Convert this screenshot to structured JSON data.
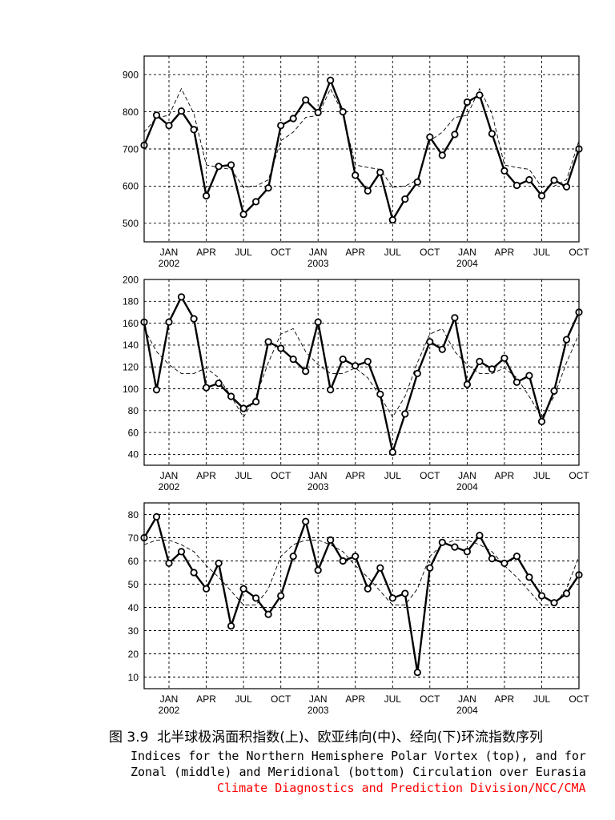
{
  "figure": {
    "caption_cn": "图 3.9  北半球极涡面积指数(上)、欧亚纬向(中)、经向(下)环流指数序列",
    "caption_en_line1": "Indices for the Northern Hemisphere Polar Vortex (top), and for",
    "caption_en_line2": "Zonal (middle) and Meridional (bottom) Circulation over Eurasia",
    "credit": "Climate Diagnostics and Prediction Division/NCC/CMA",
    "credit_color": "#ff0000"
  },
  "chart_data": [
    {
      "type": "line",
      "x": [
        "2001-11",
        "2001-12",
        "2002-01",
        "2002-02",
        "2002-03",
        "2002-04",
        "2002-05",
        "2002-06",
        "2002-07",
        "2002-08",
        "2002-09",
        "2002-10",
        "2002-11",
        "2002-12",
        "2003-01",
        "2003-02",
        "2003-03",
        "2003-04",
        "2003-05",
        "2003-06",
        "2003-07",
        "2003-08",
        "2003-09",
        "2003-10",
        "2003-11",
        "2003-12",
        "2004-01",
        "2004-02",
        "2004-03",
        "2004-04",
        "2004-05",
        "2004-06",
        "2004-07",
        "2004-08",
        "2004-09",
        "2004-10"
      ],
      "xticks": [
        {
          "x": "2002-01",
          "label": "JAN",
          "year": "2002"
        },
        {
          "x": "2002-04",
          "label": "APR"
        },
        {
          "x": "2002-07",
          "label": "JUL"
        },
        {
          "x": "2002-10",
          "label": "OCT"
        },
        {
          "x": "2003-01",
          "label": "JAN",
          "year": "2003"
        },
        {
          "x": "2003-04",
          "label": "APR"
        },
        {
          "x": "2003-07",
          "label": "JUL"
        },
        {
          "x": "2003-10",
          "label": "OCT"
        },
        {
          "x": "2004-01",
          "label": "JAN",
          "year": "2004"
        },
        {
          "x": "2004-04",
          "label": "APR"
        },
        {
          "x": "2004-07",
          "label": "JUL"
        },
        {
          "x": "2004-10",
          "label": "OCT"
        }
      ],
      "yticks": [
        500,
        600,
        700,
        800,
        900
      ],
      "ylim": [
        450,
        950
      ],
      "grid": true,
      "series": [
        {
          "line": "solid",
          "marker": "circle",
          "color": "#000000",
          "values": [
            710,
            791,
            763,
            802,
            752,
            574,
            653,
            657,
            524,
            558,
            595,
            763,
            782,
            832,
            798,
            885,
            800,
            629,
            587,
            637,
            509,
            565,
            611,
            732,
            683,
            739,
            826,
            845,
            741,
            641,
            602,
            617,
            574,
            616,
            598,
            700
          ]
        },
        {
          "line": "dashed",
          "marker": "none",
          "color": "#000000",
          "values": [
            745,
            785,
            790,
            862,
            795,
            657,
            650,
            645,
            597,
            600,
            617,
            722,
            745,
            785,
            790,
            862,
            795,
            657,
            650,
            645,
            597,
            600,
            617,
            722,
            745,
            785,
            790,
            862,
            795,
            657,
            650,
            645,
            597,
            600,
            617,
            722
          ]
        }
      ]
    },
    {
      "type": "line",
      "x": [
        "2001-11",
        "2001-12",
        "2002-01",
        "2002-02",
        "2002-03",
        "2002-04",
        "2002-05",
        "2002-06",
        "2002-07",
        "2002-08",
        "2002-09",
        "2002-10",
        "2002-11",
        "2002-12",
        "2003-01",
        "2003-02",
        "2003-03",
        "2003-04",
        "2003-05",
        "2003-06",
        "2003-07",
        "2003-08",
        "2003-09",
        "2003-10",
        "2003-11",
        "2003-12",
        "2004-01",
        "2004-02",
        "2004-03",
        "2004-04",
        "2004-05",
        "2004-06",
        "2004-07",
        "2004-08",
        "2004-09",
        "2004-10"
      ],
      "xticks": [
        {
          "x": "2002-01",
          "label": "JAN",
          "year": "2002"
        },
        {
          "x": "2002-04",
          "label": "APR"
        },
        {
          "x": "2002-07",
          "label": "JUL"
        },
        {
          "x": "2002-10",
          "label": "OCT"
        },
        {
          "x": "2003-01",
          "label": "JAN",
          "year": "2003"
        },
        {
          "x": "2003-04",
          "label": "APR"
        },
        {
          "x": "2003-07",
          "label": "JUL"
        },
        {
          "x": "2003-10",
          "label": "OCT"
        },
        {
          "x": "2004-01",
          "label": "JAN",
          "year": "2004"
        },
        {
          "x": "2004-04",
          "label": "APR"
        },
        {
          "x": "2004-07",
          "label": "JUL"
        },
        {
          "x": "2004-10",
          "label": "OCT"
        }
      ],
      "yticks": [
        40,
        60,
        80,
        100,
        120,
        140,
        160,
        180,
        200
      ],
      "ylim": [
        30,
        200
      ],
      "grid": true,
      "series": [
        {
          "line": "solid",
          "marker": "circle",
          "color": "#000000",
          "values": [
            161,
            99,
            161,
            184,
            164,
            101,
            105,
            93,
            82,
            88,
            143,
            137,
            127,
            116,
            161,
            99,
            127,
            121,
            125,
            95,
            42,
            77,
            114,
            143,
            136,
            165,
            104,
            125,
            118,
            128,
            106,
            112,
            70,
            98,
            145,
            170
          ]
        },
        {
          "line": "dashed",
          "marker": "none",
          "color": "#000000",
          "values": [
            155,
            134,
            122,
            114,
            114,
            119,
            110,
            93,
            74,
            93,
            124,
            150,
            155,
            134,
            122,
            114,
            114,
            119,
            110,
            93,
            74,
            93,
            124,
            150,
            155,
            134,
            122,
            114,
            114,
            119,
            110,
            93,
            74,
            93,
            124,
            150
          ]
        }
      ]
    },
    {
      "type": "line",
      "x": [
        "2001-11",
        "2001-12",
        "2002-01",
        "2002-02",
        "2002-03",
        "2002-04",
        "2002-05",
        "2002-06",
        "2002-07",
        "2002-08",
        "2002-09",
        "2002-10",
        "2002-11",
        "2002-12",
        "2003-01",
        "2003-02",
        "2003-03",
        "2003-04",
        "2003-05",
        "2003-06",
        "2003-07",
        "2003-08",
        "2003-09",
        "2003-10",
        "2003-11",
        "2003-12",
        "2004-01",
        "2004-02",
        "2004-03",
        "2004-04",
        "2004-05",
        "2004-06",
        "2004-07",
        "2004-08",
        "2004-09",
        "2004-10"
      ],
      "xticks": [
        {
          "x": "2002-01",
          "label": "JAN",
          "year": "2002"
        },
        {
          "x": "2002-04",
          "label": "APR"
        },
        {
          "x": "2002-07",
          "label": "JUL"
        },
        {
          "x": "2002-10",
          "label": "OCT"
        },
        {
          "x": "2003-01",
          "label": "JAN",
          "year": "2003"
        },
        {
          "x": "2003-04",
          "label": "APR"
        },
        {
          "x": "2003-07",
          "label": "JUL"
        },
        {
          "x": "2003-10",
          "label": "OCT"
        },
        {
          "x": "2004-01",
          "label": "JAN",
          "year": "2004"
        },
        {
          "x": "2004-04",
          "label": "APR"
        },
        {
          "x": "2004-07",
          "label": "JUL"
        },
        {
          "x": "2004-10",
          "label": "OCT"
        }
      ],
      "yticks": [
        10,
        20,
        30,
        40,
        50,
        60,
        70,
        80
      ],
      "ylim": [
        5,
        85
      ],
      "grid": true,
      "series": [
        {
          "line": "solid",
          "marker": "circle",
          "color": "#000000",
          "values": [
            70,
            79,
            59,
            64,
            55,
            48,
            59,
            32,
            48,
            44,
            37,
            45,
            62,
            77,
            56,
            69,
            60,
            62,
            48,
            57,
            44,
            46,
            12,
            57,
            68,
            66,
            64,
            71,
            61,
            59,
            62,
            53,
            45,
            42,
            46,
            54
          ]
        },
        {
          "line": "dashed",
          "marker": "none",
          "color": "#000000",
          "values": [
            67,
            69,
            69,
            67,
            64,
            58,
            53,
            47,
            41,
            41,
            48,
            62,
            67,
            69,
            69,
            67,
            64,
            58,
            53,
            47,
            41,
            41,
            48,
            62,
            67,
            69,
            69,
            67,
            64,
            58,
            53,
            47,
            41,
            41,
            48,
            62
          ]
        }
      ]
    }
  ]
}
